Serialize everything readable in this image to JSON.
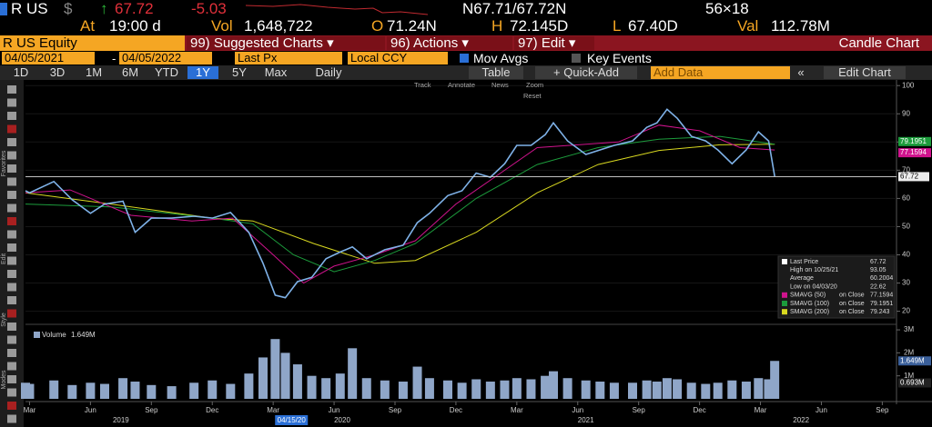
{
  "quote": {
    "ticker": "R US",
    "currency": "$",
    "last": "67.72",
    "change": "-5.03",
    "bid_ask": "N67.71/67.72N",
    "size": "56×18"
  },
  "stats": [
    {
      "label": "At",
      "value": "19:00 d"
    },
    {
      "label": "Vol",
      "value": "1,648,722"
    },
    {
      "label": "O",
      "value": "71.24N"
    },
    {
      "label": "H",
      "value": "72.145D"
    },
    {
      "label": "L",
      "value": "67.40D"
    },
    {
      "label": "Val",
      "value": "112.78M"
    }
  ],
  "menu": {
    "security": "R US Equity",
    "buttons": [
      "99) Suggested Charts ▾",
      "96) Actions ▾",
      "97) Edit ▾"
    ],
    "chart_name": "Candle Chart"
  },
  "settings": {
    "start": "04/05/2021",
    "dash": "-",
    "end": "04/05/2022",
    "field": "Last Px",
    "currency": "Local CCY",
    "options": [
      "Mov Avgs",
      "Key Events"
    ]
  },
  "periods": [
    "1D",
    "3D",
    "1M",
    "6M",
    "YTD",
    "1Y",
    "5Y",
    "Max"
  ],
  "selected_period": "1Y",
  "frequency": "Daily",
  "table": "Table",
  "quick_add": "+ Quick-Add",
  "add_data": "Add Data",
  "edit_chart": "Edit Chart",
  "chart_tools": [
    "Track",
    "Annotate",
    "News",
    "Zoom"
  ],
  "reset": "Reset",
  "side_labels": [
    "Favorites",
    "Edit",
    "Style",
    "Modes"
  ],
  "chart_data": {
    "type": "line",
    "x": [
      1.8,
      2,
      3.2,
      4.1,
      5,
      5.7,
      6.6,
      7.2,
      8,
      9,
      10.1,
      11,
      11.9,
      12.8,
      13.5,
      14.1,
      14.6,
      15.2,
      15.9,
      16.6,
      17.3,
      17.9,
      18.6,
      19.5,
      20.4,
      21.1,
      21.7,
      22.6,
      23.3,
      24,
      24.7,
      25.4,
      26,
      26.7,
      27.4,
      27.8,
      28.5,
      29.4,
      30.1,
      30.8,
      31.7,
      32.4,
      32.9,
      33.4,
      33.9,
      34.6,
      35.3,
      35.9,
      36.6,
      37.3,
      37.9,
      38.4,
      38.7
    ],
    "xlim": [
      1.8,
      44.7
    ],
    "xticks": [
      {
        "value": 2,
        "label": "Mar"
      },
      {
        "value": 5,
        "label": "Jun"
      },
      {
        "value": 8,
        "label": "Sep"
      },
      {
        "value": 11,
        "label": "Dec"
      },
      {
        "value": 14,
        "label": "Mar"
      },
      {
        "value": 17,
        "label": "Jun"
      },
      {
        "value": 20,
        "label": "Sep"
      },
      {
        "value": 23,
        "label": "Dec"
      },
      {
        "value": 26,
        "label": "Mar"
      },
      {
        "value": 29,
        "label": "Jun"
      },
      {
        "value": 32,
        "label": "Sep"
      },
      {
        "value": 35,
        "label": "Dec"
      },
      {
        "value": 38,
        "label": "Mar"
      },
      {
        "value": 41,
        "label": "Jun"
      },
      {
        "value": 44,
        "label": "Sep"
      }
    ],
    "years": [
      {
        "value": 6.5,
        "label": "2019"
      },
      {
        "value": 17.4,
        "label": "2020"
      },
      {
        "value": 29.4,
        "label": "2021"
      },
      {
        "value": 40,
        "label": "2022"
      }
    ],
    "cursor": {
      "value": 14.9,
      "label": "04/15/20"
    },
    "ylim": [
      16,
      102
    ],
    "yticks": [
      20,
      30,
      40,
      50,
      60,
      70,
      80,
      90,
      100
    ],
    "grid": true,
    "series": [
      {
        "name": "Last Price",
        "color": "#7fb2e8",
        "legend_value": "67.72",
        "values": [
          62.7,
          62,
          66,
          59.5,
          54.7,
          58,
          59,
          48,
          53,
          53,
          53.7,
          53,
          55,
          48,
          37,
          25.7,
          24.8,
          30.5,
          32,
          38.6,
          41,
          42.8,
          38.6,
          41.8,
          43.4,
          51.4,
          54.7,
          61,
          62.7,
          69,
          67.5,
          72.3,
          78.8,
          78.8,
          82.6,
          86.8,
          80.4,
          75.6,
          77.2,
          78.8,
          80.4,
          85.2,
          86.8,
          91.6,
          88.4,
          82,
          80.4,
          77.2,
          72.3,
          77.2,
          83.6,
          80.4,
          67.72
        ]
      },
      {
        "name": "SMAVG (50)",
        "color": "#d0138d",
        "legend_value": "77.1594",
        "x": [
          1.8,
          4,
          7,
          10,
          12,
          14,
          15.5,
          17,
          19,
          21,
          23,
          25,
          27,
          29,
          31,
          33,
          35,
          37,
          38.7
        ],
        "values": [
          62,
          63,
          54,
          52,
          53,
          40,
          30,
          36,
          40,
          45,
          58,
          68,
          78,
          79,
          80,
          86,
          84,
          78,
          77.1594
        ]
      },
      {
        "name": "SMAVG (100)",
        "color": "#1c9c3c",
        "legend_value": "79.1951",
        "x": [
          1.8,
          6,
          11,
          13,
          15,
          17,
          19,
          21,
          24,
          27,
          30,
          33,
          36,
          38.7
        ],
        "values": [
          58,
          57,
          53,
          51,
          40,
          34,
          38,
          44,
          60,
          72,
          78,
          81,
          82,
          79.1951
        ]
      },
      {
        "name": "SMAVG (200)",
        "color": "#d8d820",
        "legend_value": "79.243",
        "x": [
          1.8,
          6,
          11,
          13,
          16,
          19,
          21,
          24,
          27,
          30,
          33,
          36,
          38.7
        ],
        "values": [
          62,
          58,
          53,
          52,
          44,
          37,
          38,
          48,
          62,
          72,
          77,
          79,
          79.243
        ]
      }
    ],
    "legend_extra": [
      {
        "label": "High on 10/25/21",
        "value": "93.05"
      },
      {
        "label": "Average",
        "value": "60.2004"
      },
      {
        "label": "Low on 04/03/20",
        "value": "22.62"
      }
    ],
    "ma_suffix": "on Close",
    "tags": [
      {
        "value": 79.1951,
        "label": "79.1951",
        "color": "#1c9c3c"
      },
      {
        "value": 77.1594,
        "label": "77.1594",
        "color": "#d0138d"
      }
    ],
    "volume": {
      "name": "Volume",
      "label": "1.649M",
      "color": "#8fa6c8",
      "ylim": [
        0,
        3200000
      ],
      "yticks": [
        {
          "value": 1000000,
          "label": "1M"
        },
        {
          "value": 2000000,
          "label": "2M"
        },
        {
          "value": 3000000,
          "label": "3M"
        }
      ],
      "values": [
        700000,
        650000,
        800000,
        600000,
        700000,
        650000,
        900000,
        750000,
        600000,
        550000,
        700000,
        800000,
        650000,
        1100000,
        1800000,
        2600000,
        2000000,
        1500000,
        1000000,
        900000,
        1100000,
        2200000,
        900000,
        800000,
        750000,
        1400000,
        900000,
        800000,
        700000,
        850000,
        750000,
        800000,
        900000,
        850000,
        1000000,
        1200000,
        900000,
        800000,
        750000,
        700000,
        700000,
        800000,
        750000,
        900000,
        850000,
        700000,
        650000,
        700000,
        800000,
        750000,
        900000,
        850000,
        1649000
      ],
      "tags": [
        {
          "value": 1649000,
          "label": "1.649M"
        },
        {
          "value": 693000,
          "label": "0.693M"
        }
      ]
    }
  }
}
